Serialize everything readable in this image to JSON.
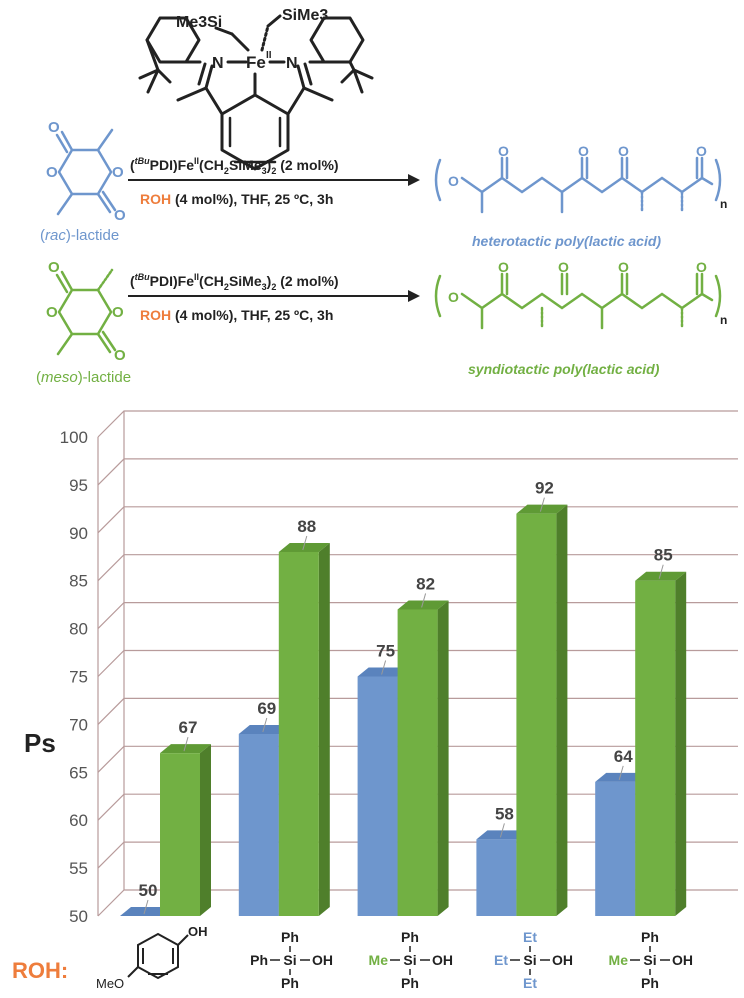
{
  "scheme": {
    "catalyst_label": "(tBuPDI)FeII(CH2SiMe3)2 (2 mol%)",
    "catalyst_parts": {
      "open": "(",
      "sup1": "tBu",
      "mid": "PDI)Fe",
      "sup2": "II",
      "rest": "(CH",
      "sub": "2",
      "tail": "SiMe",
      "sub2": "3",
      "end": ")",
      "sub3": "2",
      "amount": " (2 mol%)"
    },
    "conditions": {
      "roh": "ROH",
      "rest": " (4 mol%), THF, 25 ºC, 3h"
    },
    "complex_labels": {
      "me3si": "Me3Si",
      "sime3": "SiMe3",
      "fe": "Fe",
      "fe_ox": "II",
      "n": "N"
    },
    "rac": {
      "prefix": "(",
      "name": "rac",
      "suffix": ")-lactide"
    },
    "meso": {
      "prefix": "(",
      "name": "meso",
      "suffix": ")-lactide"
    },
    "product_hetero": "heterotactic poly(lactic acid)",
    "product_syndio": "syndiotactic poly(lactic acid)",
    "o": "O",
    "n_sub": "n",
    "colors": {
      "blue": "#6e96cd",
      "green": "#72b043",
      "orange": "#ee7d3c",
      "dark": "#222222"
    }
  },
  "chart_data": {
    "type": "bar",
    "ylabel": "Ps",
    "ylim": [
      50,
      100
    ],
    "yticks": [
      50,
      55,
      60,
      65,
      70,
      75,
      80,
      85,
      90,
      95,
      100
    ],
    "categories": [
      "4-methoxyphenol",
      "Ph3SiOH",
      "MePh2SiOH",
      "Et3SiOH",
      "MePh2SiOH"
    ],
    "series": [
      {
        "name": "rac-lactide",
        "color": "#6e96cd",
        "values": [
          50,
          69,
          75,
          58,
          64
        ]
      },
      {
        "name": "meso-lactide",
        "color": "#72b043",
        "values": [
          67,
          88,
          82,
          92,
          85
        ]
      }
    ],
    "grid": true,
    "x_caption": "ROH:"
  },
  "roh_labels": [
    {
      "oh": "OH",
      "meo": "MeO"
    },
    {
      "top": "Ph",
      "left": "Ph",
      "si": "Si",
      "oh": "OH",
      "bottom": "Ph"
    },
    {
      "top": "Ph",
      "left": "Me",
      "si": "Si",
      "oh": "OH",
      "bottom": "Ph"
    },
    {
      "top": "Et",
      "left": "Et",
      "si": "Si",
      "oh": "OH",
      "bottom": "Et"
    },
    {
      "top": "Ph",
      "left": "Me",
      "si": "Si",
      "oh": "OH",
      "bottom": "Ph"
    }
  ]
}
